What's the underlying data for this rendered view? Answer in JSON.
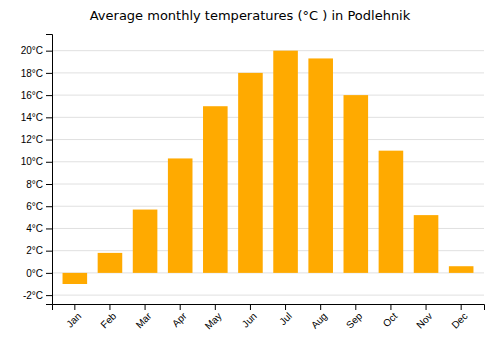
{
  "chart_data": {
    "type": "bar",
    "title": "Average monthly temperatures (°C ) in Podlehnik",
    "categories": [
      "Jan",
      "Feb",
      "Mar",
      "Apr",
      "May",
      "Jun",
      "Jul",
      "Aug",
      "Sep",
      "Oct",
      "Nov",
      "Dec"
    ],
    "values": [
      -1.0,
      1.8,
      5.7,
      10.3,
      15.0,
      18.0,
      20.0,
      19.3,
      16.0,
      11.0,
      5.2,
      0.6
    ],
    "color": "#FFAA00",
    "ylim": [
      -2.8,
      21.5
    ],
    "yticks": [
      {
        "value": -2,
        "label": "-2°C"
      },
      {
        "value": 0,
        "label": "0°C"
      },
      {
        "value": 2,
        "label": "2°C"
      },
      {
        "value": 4,
        "label": "4°C"
      },
      {
        "value": 6,
        "label": "6°C"
      },
      {
        "value": 8,
        "label": "8°C"
      },
      {
        "value": 10,
        "label": "10°C"
      },
      {
        "value": 12,
        "label": "12°C"
      },
      {
        "value": 14,
        "label": "14°C"
      },
      {
        "value": 16,
        "label": "16°C"
      },
      {
        "value": 18,
        "label": "18°C"
      },
      {
        "value": 20,
        "label": "20°C"
      }
    ],
    "grid": true
  }
}
